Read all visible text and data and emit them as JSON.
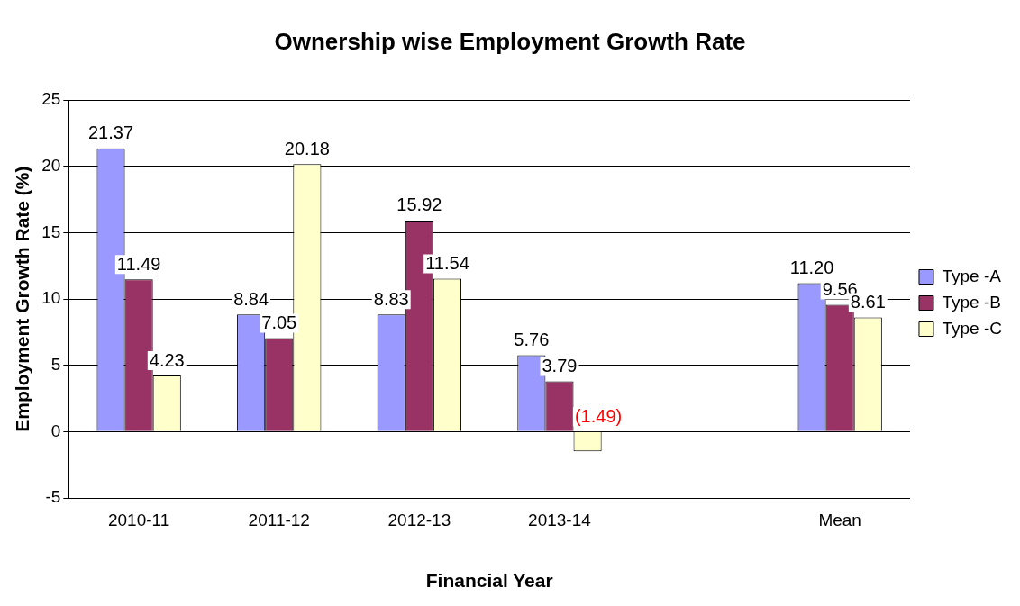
{
  "chart_data": {
    "type": "bar",
    "title": "Ownership wise Employment Growth Rate",
    "xlabel": "Financial Year",
    "ylabel": "Employment Growth Rate (%)",
    "categories": [
      "2010-11",
      "2011-12",
      "2012-13",
      "2013-14",
      null,
      "Mean"
    ],
    "series": [
      {
        "name": "Type -A",
        "color": "#9999ff",
        "values": [
          21.37,
          8.84,
          8.83,
          5.76,
          null,
          11.2
        ],
        "value_labels": [
          "21.37",
          "8.84",
          "8.83",
          "5.76",
          null,
          "11.20"
        ]
      },
      {
        "name": "Type -B",
        "color": "#993366",
        "values": [
          11.49,
          7.05,
          15.92,
          3.79,
          null,
          9.56
        ],
        "value_labels": [
          "11.49",
          "7.05",
          "15.92",
          "3.79",
          null,
          "9.56"
        ]
      },
      {
        "name": "Type -C",
        "color": "#ffffcc",
        "values": [
          4.23,
          20.18,
          11.54,
          -1.49,
          null,
          8.61
        ],
        "value_labels": [
          "4.23",
          "20.18",
          "11.54",
          "(1.49)",
          null,
          "8.61"
        ]
      }
    ],
    "ylim": [
      -5,
      25
    ],
    "yticks": [
      -5,
      0,
      5,
      10,
      15,
      20,
      25
    ],
    "grid": "y",
    "legend": "right"
  }
}
